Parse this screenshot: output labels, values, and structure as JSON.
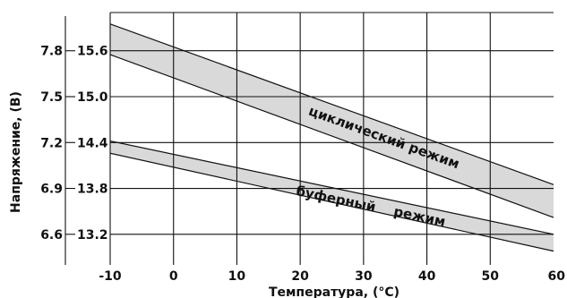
{
  "chart_data": {
    "type": "area",
    "title": "",
    "xlabel": "Температура, (°C)",
    "ylabel": "Напряжение,    (В)",
    "grid": true,
    "xlim": [
      -10,
      60
    ],
    "ylim": [
      12.8,
      16.1
    ],
    "x_ticks": [
      -10,
      0,
      10,
      20,
      30,
      40,
      50,
      60
    ],
    "y_ticks_outer": [
      "7.8",
      "7.5",
      "7.2",
      "6.9",
      "6.6"
    ],
    "y_ticks_inner": [
      "15.6",
      "15.0",
      "14.4",
      "13.8",
      "13.2"
    ],
    "y_tick_values": [
      15.6,
      15.0,
      14.4,
      13.8,
      13.2
    ],
    "series": [
      {
        "name": "циклический режим",
        "x": [
          -10,
          60
        ],
        "upper": [
          15.95,
          13.85
        ],
        "lower": [
          15.55,
          13.42
        ]
      },
      {
        "name": "буферный    режим",
        "x": [
          -10,
          60
        ],
        "upper": [
          14.42,
          13.2
        ],
        "lower": [
          14.26,
          12.98
        ]
      }
    ]
  }
}
